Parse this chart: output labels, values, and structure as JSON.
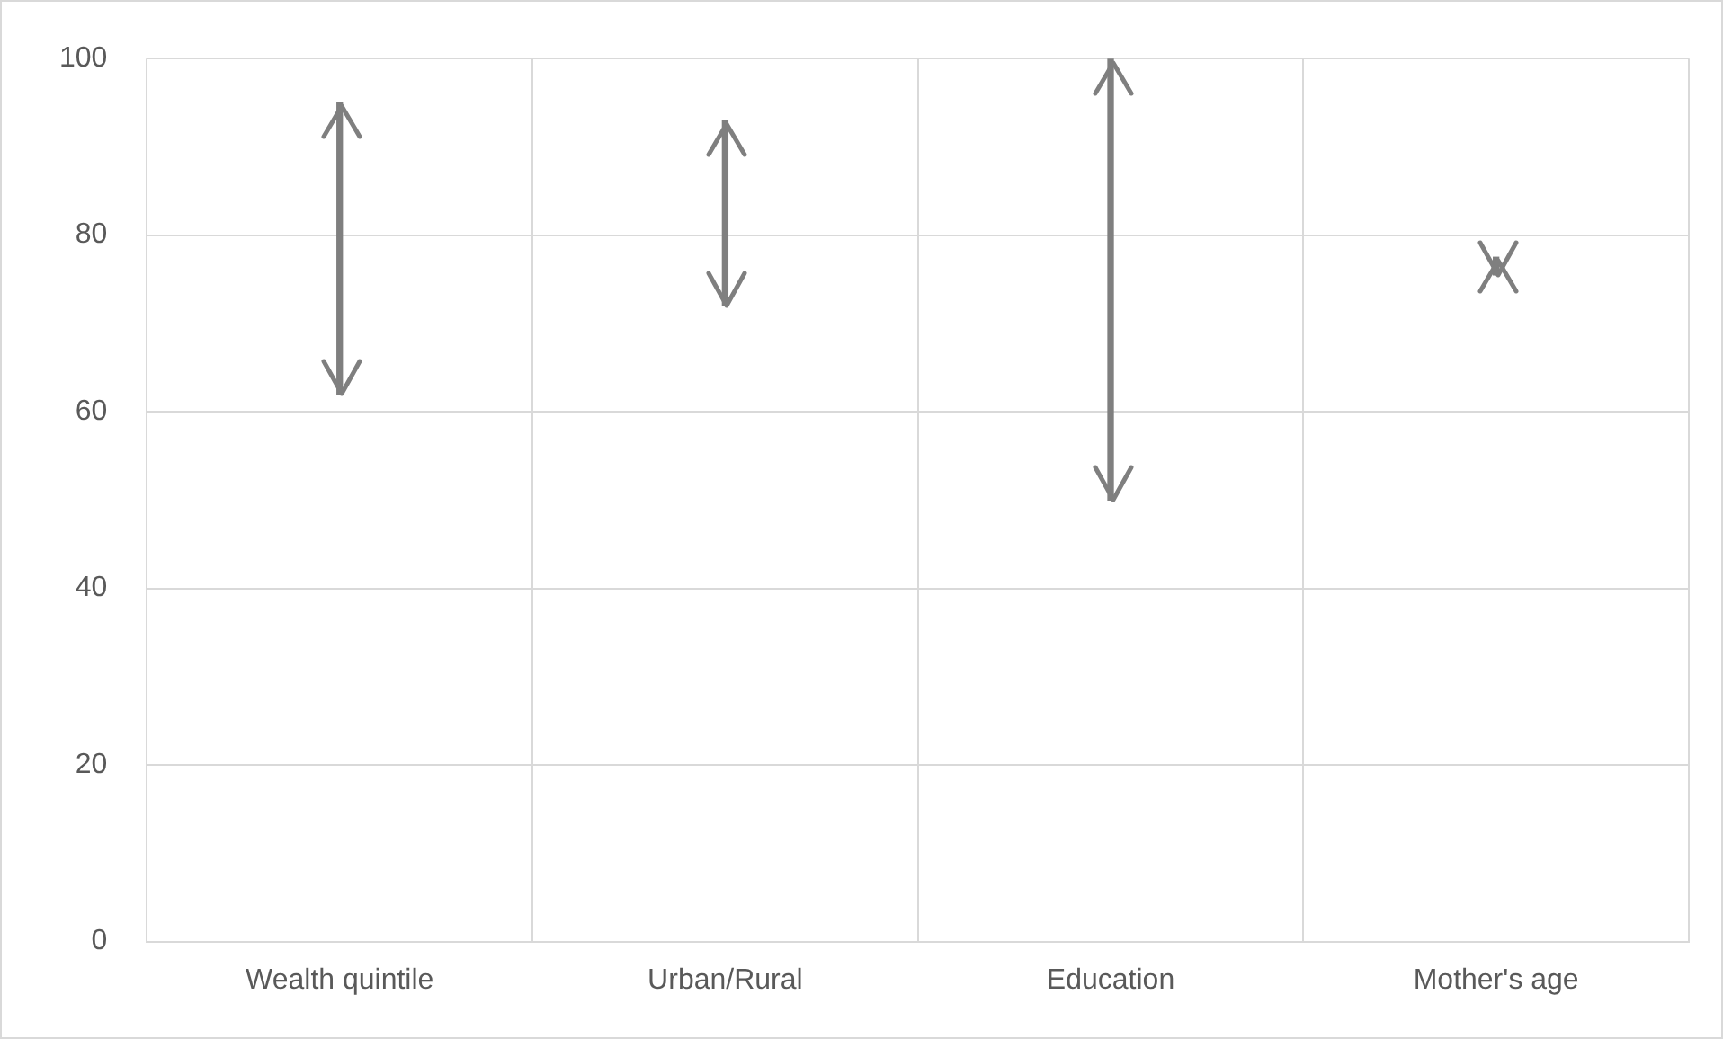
{
  "chart_data": {
    "type": "bar",
    "categories": [
      "Wealth quintile",
      "Urban/Rural",
      "Education",
      "Mother's age"
    ],
    "values": [
      33,
      21,
      50,
      2
    ],
    "base": [
      62,
      72,
      50,
      75.5
    ],
    "color": "#7f7f7f",
    "ylim": [
      0,
      100
    ],
    "yticks": [
      0,
      20,
      40,
      60,
      80,
      100
    ],
    "grid": true,
    "legend": false
  }
}
